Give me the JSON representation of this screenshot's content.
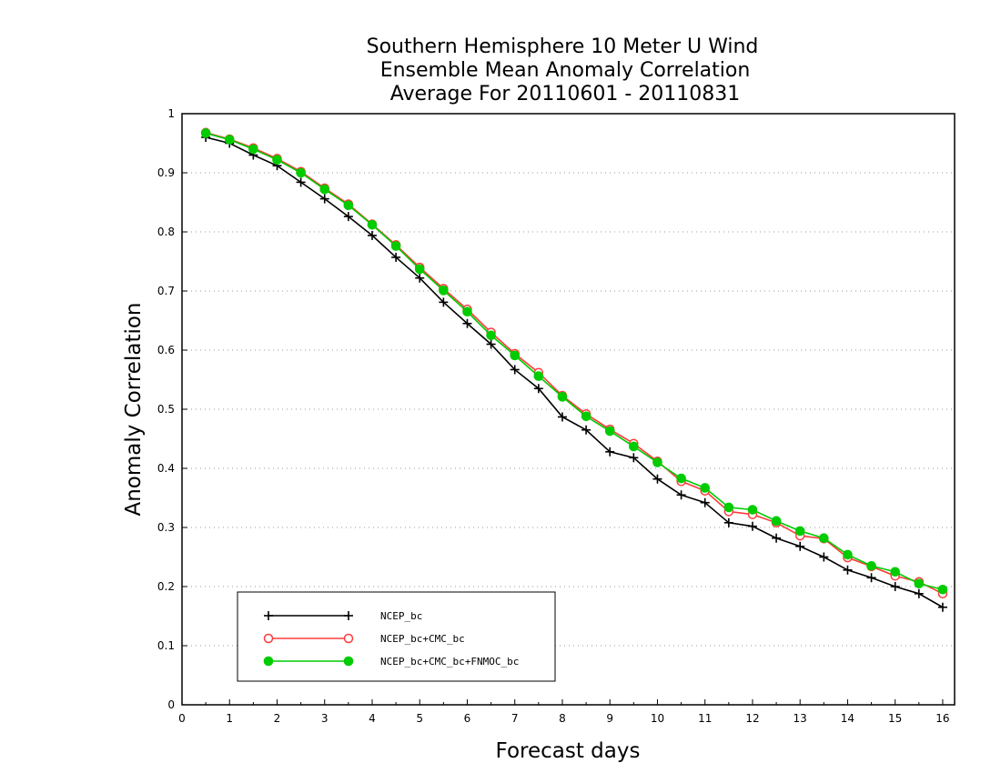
{
  "chart_data": {
    "type": "line",
    "title": [
      "Southern Hemisphere 10 Meter U Wind",
      "Ensemble Mean Anomaly Correlation",
      "Average For 20110601 - 20110831"
    ],
    "xlabel": "Forecast days",
    "ylabel": "Anomaly Correlation",
    "xlim": [
      0,
      16.25
    ],
    "ylim": [
      0,
      1
    ],
    "xticks": [
      "0",
      "1",
      "2",
      "3",
      "4",
      "5",
      "6",
      "7",
      "8",
      "9",
      "10",
      "11",
      "12",
      "13",
      "14",
      "15",
      "16"
    ],
    "yticks": [
      "0",
      "0.1",
      "0.2",
      "0.3",
      "0.4",
      "0.5",
      "0.6",
      "0.7",
      "0.8",
      "0.9",
      "1"
    ],
    "grid": "horizontal dotted",
    "legend_position": "bottom-left",
    "x": [
      0.5,
      1,
      1.5,
      2,
      2.5,
      3,
      3.5,
      4,
      4.5,
      5,
      5.5,
      6,
      6.5,
      7,
      7.5,
      8,
      8.5,
      9,
      9.5,
      10,
      10.5,
      11,
      11.5,
      12,
      12.5,
      13,
      13.5,
      14,
      14.5,
      15,
      15.5,
      16
    ],
    "series": [
      {
        "name": "NCEP_bc",
        "color": "#000000",
        "marker": "plus",
        "values": [
          0.96,
          0.95,
          0.93,
          0.912,
          0.884,
          0.856,
          0.826,
          0.794,
          0.757,
          0.722,
          0.681,
          0.645,
          0.61,
          0.567,
          0.535,
          0.487,
          0.465,
          0.428,
          0.418,
          0.382,
          0.355,
          0.342,
          0.308,
          0.302,
          0.282,
          0.268,
          0.25,
          0.228,
          0.215,
          0.2,
          0.188,
          0.165
        ]
      },
      {
        "name": "NCEP_bc+CMC_bc",
        "color": "#ff3b3b",
        "marker": "open-circle",
        "values": [
          0.968,
          0.957,
          0.942,
          0.924,
          0.902,
          0.874,
          0.847,
          0.813,
          0.778,
          0.74,
          0.704,
          0.669,
          0.63,
          0.594,
          0.562,
          0.523,
          0.492,
          0.466,
          0.442,
          0.412,
          0.378,
          0.362,
          0.327,
          0.322,
          0.308,
          0.286,
          0.281,
          0.249,
          0.234,
          0.218,
          0.208,
          0.188
        ]
      },
      {
        "name": "NCEP_bc+CMC_bc+FNMOC_bc",
        "color": "#00cc00",
        "marker": "filled-circle",
        "values": [
          0.967,
          0.956,
          0.94,
          0.922,
          0.9,
          0.872,
          0.845,
          0.812,
          0.776,
          0.737,
          0.701,
          0.665,
          0.625,
          0.591,
          0.556,
          0.521,
          0.488,
          0.463,
          0.437,
          0.41,
          0.383,
          0.367,
          0.334,
          0.33,
          0.311,
          0.294,
          0.282,
          0.254,
          0.235,
          0.225,
          0.205,
          0.195
        ]
      }
    ]
  }
}
